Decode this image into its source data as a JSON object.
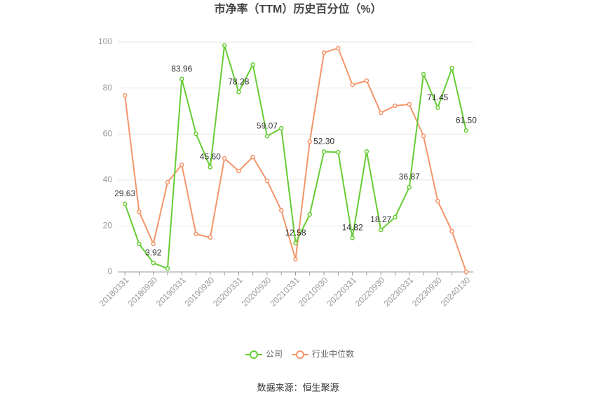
{
  "chart_data": {
    "type": "line",
    "title": "市净率（TTM）历史百分位（%）",
    "source": "数据来源：恒生聚源",
    "categories": [
      "20180331",
      null,
      "20180930",
      null,
      "20190331",
      null,
      "20190930",
      null,
      "20200331",
      null,
      "20200930",
      null,
      "20210331",
      null,
      "20210930",
      null,
      "20220331",
      null,
      "20220930",
      null,
      "20230331",
      null,
      "20230930",
      null,
      "20240130"
    ],
    "series": [
      {
        "name": "公司",
        "color": "#66cc33",
        "values": [
          29.63,
          12.2,
          3.92,
          1.5,
          83.96,
          60.1,
          45.6,
          98.5,
          78.28,
          90.2,
          59.07,
          62.5,
          12.58,
          25.0,
          52.3,
          52.1,
          14.82,
          52.4,
          18.27,
          23.8,
          36.87,
          86.0,
          71.45,
          88.7,
          61.5
        ],
        "value_labels": [
          "29.63",
          null,
          "3.92",
          null,
          "83.96",
          null,
          "45.60",
          null,
          "78.28",
          null,
          "59.07",
          null,
          "12.58",
          null,
          "52.30",
          null,
          "14.82",
          null,
          "18.27",
          null,
          "36.87",
          null,
          "71.45",
          null,
          "61.50"
        ]
      },
      {
        "name": "行业中位数",
        "color": "#f4956a",
        "values": [
          76.8,
          26.2,
          12.2,
          39.0,
          46.6,
          16.5,
          15.0,
          49.4,
          43.9,
          50.0,
          39.6,
          26.8,
          5.5,
          56.7,
          95.4,
          97.3,
          81.4,
          83.2,
          69.2,
          72.3,
          72.9,
          59.1,
          30.8,
          17.7,
          0
        ]
      }
    ],
    "ylim": [
      0,
      100
    ],
    "yticks": [
      0,
      20,
      40,
      60,
      80,
      100
    ],
    "grid": true,
    "legend": "bottom"
  }
}
